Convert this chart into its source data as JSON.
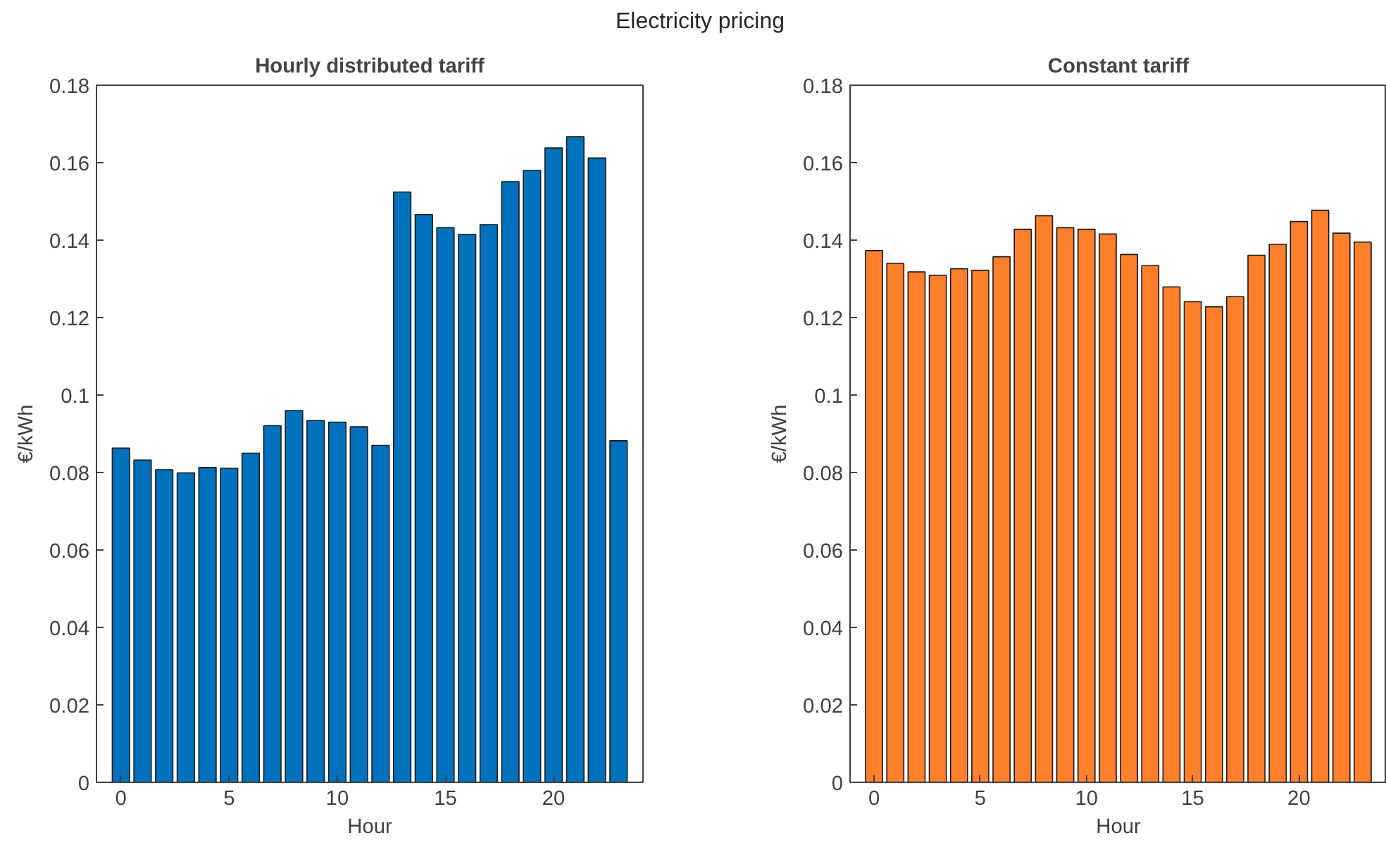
{
  "chart_data": [
    {
      "type": "bar",
      "title": "Hourly distributed tariff",
      "annotations": [
        "Electricity pricing"
      ],
      "xlabel": "Hour",
      "ylabel": "€/kWh",
      "x": [
        0,
        1,
        2,
        3,
        4,
        5,
        6,
        7,
        8,
        9,
        10,
        11,
        12,
        13,
        14,
        15,
        16,
        17,
        18,
        19,
        20,
        21,
        22,
        23
      ],
      "values": [
        0.0863,
        0.0832,
        0.0807,
        0.0799,
        0.0813,
        0.0811,
        0.085,
        0.0921,
        0.096,
        0.0934,
        0.093,
        0.0918,
        0.087,
        0.1524,
        0.1466,
        0.1432,
        0.1415,
        0.144,
        0.1551,
        0.158,
        0.1638,
        0.1667,
        0.1612,
        0.0882
      ],
      "color": "#0072bd",
      "xlim": [
        -1.13,
        24.13
      ],
      "ylim": [
        0,
        0.18
      ],
      "xticks": [
        0,
        5,
        10,
        15,
        20
      ],
      "yticks": [
        0,
        0.02,
        0.04,
        0.06,
        0.08,
        0.1,
        0.12,
        0.14,
        0.16,
        0.18
      ],
      "grid": false
    },
    {
      "type": "bar",
      "title": "Constant tariff",
      "xlabel": "Hour",
      "ylabel": "€/kWh",
      "x": [
        0,
        1,
        2,
        3,
        4,
        5,
        6,
        7,
        8,
        9,
        10,
        11,
        12,
        13,
        14,
        15,
        16,
        17,
        18,
        19,
        20,
        21,
        22,
        23
      ],
      "values": [
        0.1373,
        0.134,
        0.1318,
        0.1309,
        0.1326,
        0.1322,
        0.1357,
        0.1428,
        0.1463,
        0.1432,
        0.1428,
        0.1416,
        0.1363,
        0.1334,
        0.1279,
        0.1241,
        0.1228,
        0.1254,
        0.1361,
        0.1389,
        0.1448,
        0.1477,
        0.1418,
        0.1395
      ],
      "color": "#ff7f2a",
      "xlim": [
        -1.13,
        24.13
      ],
      "ylim": [
        0,
        0.18
      ],
      "xticks": [
        0,
        5,
        10,
        15,
        20
      ],
      "yticks": [
        0,
        0.02,
        0.04,
        0.06,
        0.08,
        0.1,
        0.12,
        0.14,
        0.16,
        0.18
      ],
      "grid": false
    }
  ]
}
